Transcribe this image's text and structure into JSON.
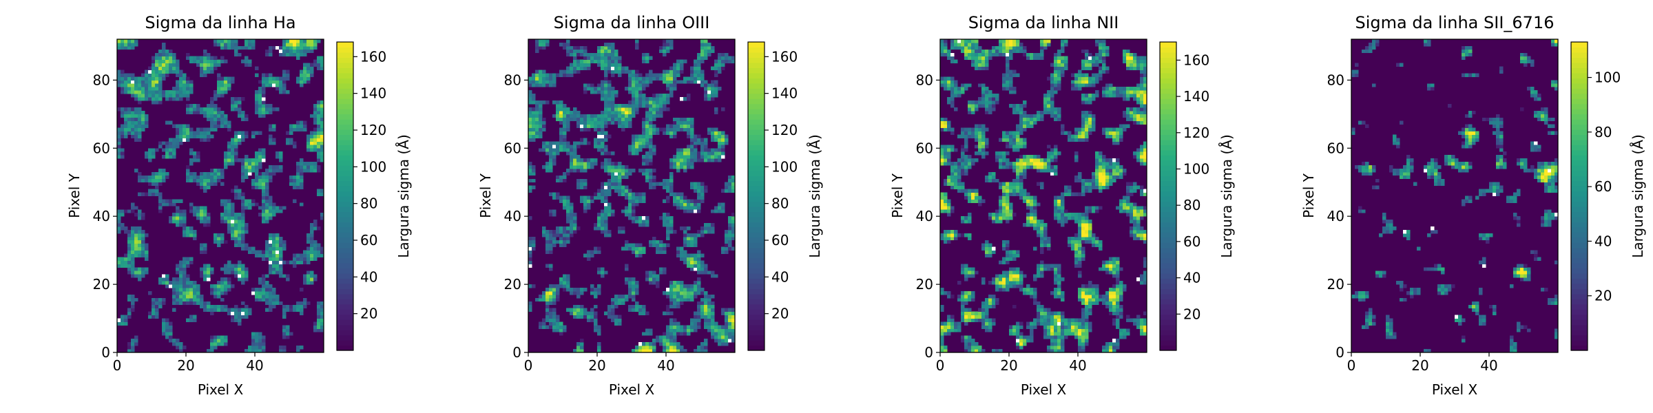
{
  "chart_data": [
    {
      "type": "heatmap",
      "title": "Sigma da linha Ha",
      "xlabel": "Pixel X",
      "ylabel": "Pixel Y",
      "xlim": [
        0,
        60
      ],
      "ylim": [
        0,
        92
      ],
      "xticks": [
        0,
        20,
        40
      ],
      "yticks": [
        0,
        20,
        40,
        60,
        80
      ],
      "grid": false,
      "colormap": "viridis",
      "colorbar": {
        "label": "Largura sigma (Å)",
        "range": [
          0,
          168
        ],
        "ticks": [
          20,
          40,
          60,
          80,
          100,
          120,
          140,
          160
        ]
      },
      "fill_fraction": 0.36,
      "seed": 11
    },
    {
      "type": "heatmap",
      "title": "Sigma da linha OIII",
      "xlabel": "Pixel X",
      "ylabel": "Pixel Y",
      "xlim": [
        0,
        60
      ],
      "ylim": [
        0,
        92
      ],
      "xticks": [
        0,
        20,
        40
      ],
      "yticks": [
        0,
        20,
        40,
        60,
        80
      ],
      "grid": false,
      "colormap": "viridis",
      "colorbar": {
        "label": "Largura sigma (Å)",
        "range": [
          0,
          168
        ],
        "ticks": [
          20,
          40,
          60,
          80,
          100,
          120,
          140,
          160
        ]
      },
      "fill_fraction": 0.38,
      "seed": 23
    },
    {
      "type": "heatmap",
      "title": "Sigma da linha NII",
      "xlabel": "Pixel X",
      "ylabel": "Pixel Y",
      "xlim": [
        0,
        60
      ],
      "ylim": [
        0,
        92
      ],
      "xticks": [
        0,
        20,
        40
      ],
      "yticks": [
        0,
        20,
        40,
        60,
        80
      ],
      "grid": false,
      "colormap": "viridis",
      "colorbar": {
        "label": "Largura sigma (Å)",
        "range": [
          0,
          170
        ],
        "ticks": [
          20,
          40,
          60,
          80,
          100,
          120,
          140,
          160
        ]
      },
      "fill_fraction": 0.38,
      "seed": 37
    },
    {
      "type": "heatmap",
      "title": "Sigma da linha SII_6716",
      "xlabel": "Pixel X",
      "ylabel": "Pixel Y",
      "xlim": [
        0,
        60
      ],
      "ylim": [
        0,
        92
      ],
      "xticks": [
        0,
        20,
        40
      ],
      "yticks": [
        0,
        20,
        40,
        60,
        80
      ],
      "grid": false,
      "colormap": "viridis",
      "colorbar": {
        "label": "Largura sigma (Å)",
        "range": [
          0,
          113
        ],
        "ticks": [
          20,
          40,
          60,
          80,
          100
        ]
      },
      "fill_fraction": 0.11,
      "seed": 53
    }
  ]
}
